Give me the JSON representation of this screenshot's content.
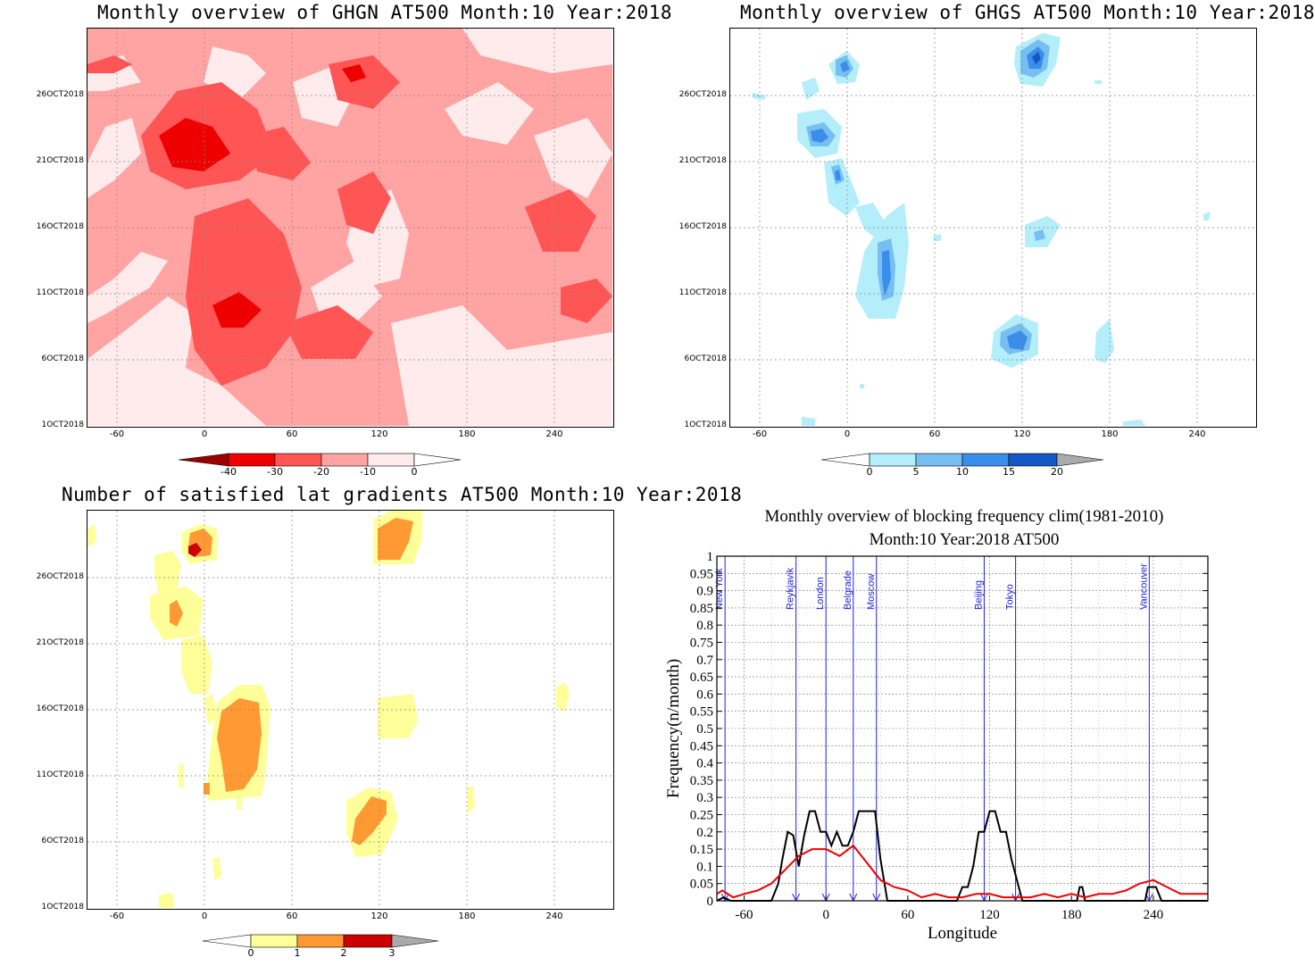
{
  "panels": {
    "ghgn": {
      "title": "Monthly overview of GHGN AT500 Month:10 Year:2018"
    },
    "ghgs": {
      "title": "Monthly overview of GHGS AT500 Month:10 Year:2018"
    },
    "lat": {
      "title": "Number of satisfied lat gradients AT500 Month:10 Year:2018"
    },
    "freq": {
      "title_line1": "Monthly overview of blocking frequency clim(1981-2010)",
      "title_line2": "Month:10 Year:2018  AT500"
    }
  },
  "colors": {
    "ghgn_levels": [
      "#ffebeb",
      "#ffa3a3",
      "#ff5555",
      "#ee0000",
      "#9b0000"
    ],
    "ghgs_levels": [
      "#b3eefa",
      "#77bff2",
      "#3a8de8",
      "#1457c5"
    ],
    "lat_levels": [
      "#ffff99",
      "#ff9933",
      "#cc0000"
    ],
    "freq_line_obs": "#000000",
    "freq_line_clim": "#ee0000",
    "city_line": "#2222dd"
  },
  "chart_data": [
    {
      "type": "heatmap",
      "title": "Monthly overview of GHGN AT500 Month:10 Year:2018",
      "x_ticks": [
        "-60",
        "0",
        "60",
        "120",
        "180",
        "240"
      ],
      "y_ticks": [
        "1OCT2018",
        "6OCT2018",
        "11OCT2018",
        "16OCT2018",
        "21OCT2018",
        "26OCT2018"
      ],
      "colorbar_ticks": [
        "-40",
        "-30",
        "-20",
        "-10",
        "0"
      ],
      "xlim": [
        -80,
        280
      ]
    },
    {
      "type": "heatmap",
      "title": "Monthly overview of GHGS AT500 Month:10 Year:2018",
      "x_ticks": [
        "-60",
        "0",
        "60",
        "120",
        "180",
        "240"
      ],
      "y_ticks": [
        "1OCT2018",
        "6OCT2018",
        "11OCT2018",
        "16OCT2018",
        "21OCT2018",
        "26OCT2018"
      ],
      "colorbar_ticks": [
        "0",
        "5",
        "10",
        "15",
        "20"
      ],
      "xlim": [
        -80,
        280
      ]
    },
    {
      "type": "heatmap",
      "title": "Number of satisfied lat gradients AT500 Month:10 Year:2018",
      "x_ticks": [
        "-60",
        "0",
        "60",
        "120",
        "180",
        "240"
      ],
      "y_ticks": [
        "1OCT2018",
        "6OCT2018",
        "11OCT2018",
        "16OCT2018",
        "21OCT2018",
        "26OCT2018"
      ],
      "colorbar_ticks": [
        "0",
        "1",
        "2",
        "3"
      ],
      "xlim": [
        -80,
        280
      ]
    },
    {
      "type": "line",
      "title": "Monthly overview of blocking frequency clim(1981-2010)",
      "subtitle": "Month:10 Year:2018  AT500",
      "xlabel": "Longitude",
      "ylabel": "Frequency(n/month)",
      "xlim": [
        -80,
        280
      ],
      "ylim": [
        0,
        1
      ],
      "x_ticks": [
        "-60",
        "0",
        "60",
        "120",
        "180",
        "240"
      ],
      "y_ticks": [
        "0",
        "0.05",
        "0.1",
        "0.15",
        "0.2",
        "0.25",
        "0.3",
        "0.35",
        "0.4",
        "0.45",
        "0.5",
        "0.55",
        "0.6",
        "0.65",
        "0.7",
        "0.75",
        "0.8",
        "0.85",
        "0.9",
        "0.95",
        "1"
      ],
      "cities": [
        {
          "name": "New York",
          "lon": -74
        },
        {
          "name": "Reykjavik",
          "lon": -22
        },
        {
          "name": "London",
          "lon": 0
        },
        {
          "name": "Belgrade",
          "lon": 20
        },
        {
          "name": "Moscow",
          "lon": 37
        },
        {
          "name": "Beijing",
          "lon": 116
        },
        {
          "name": "Tokyo",
          "lon": 139
        },
        {
          "name": "Vancouver",
          "lon": 237
        }
      ],
      "series": [
        {
          "x": [
            -80,
            -75,
            -70,
            -65,
            -50,
            -40,
            -35,
            -32,
            -28,
            -24,
            -20,
            -16,
            -12,
            -8,
            -4,
            0,
            4,
            8,
            12,
            16,
            20,
            24,
            28,
            32,
            36,
            40,
            45,
            50,
            90,
            96,
            100,
            104,
            108,
            112,
            116,
            120,
            124,
            128,
            132,
            136,
            140,
            144,
            150,
            184,
            186,
            188,
            190,
            192,
            200,
            232,
            234,
            236,
            238,
            242,
            246,
            280
          ],
          "y": [
            0,
            0.01,
            0,
            0,
            0,
            0,
            0.05,
            0.12,
            0.2,
            0.19,
            0.1,
            0.19,
            0.26,
            0.26,
            0.2,
            0.2,
            0.16,
            0.2,
            0.16,
            0.16,
            0.2,
            0.26,
            0.26,
            0.26,
            0.26,
            0.12,
            0,
            0,
            0,
            0,
            0.04,
            0.04,
            0.1,
            0.2,
            0.2,
            0.26,
            0.26,
            0.2,
            0.2,
            0.12,
            0.06,
            0,
            0,
            0,
            0.04,
            0.04,
            0,
            0,
            0,
            0,
            0,
            0.04,
            0.04,
            0.04,
            0,
            0
          ]
        },
        {
          "x": [
            -80,
            -76,
            -72,
            -68,
            -60,
            -50,
            -40,
            -30,
            -20,
            -10,
            0,
            10,
            20,
            30,
            40,
            50,
            60,
            70,
            80,
            90,
            100,
            110,
            120,
            130,
            140,
            150,
            160,
            170,
            180,
            190,
            200,
            210,
            220,
            230,
            240,
            250,
            260,
            270,
            280
          ],
          "y": [
            0.02,
            0.03,
            0.02,
            0.01,
            0.02,
            0.03,
            0.05,
            0.09,
            0.13,
            0.15,
            0.15,
            0.13,
            0.16,
            0.11,
            0.06,
            0.04,
            0.03,
            0.01,
            0.02,
            0.01,
            0.01,
            0.02,
            0.02,
            0.01,
            0.01,
            0.01,
            0.02,
            0.01,
            0.02,
            0.01,
            0.02,
            0.02,
            0.03,
            0.05,
            0.06,
            0.04,
            0.02,
            0.02,
            0.02
          ]
        }
      ]
    }
  ]
}
